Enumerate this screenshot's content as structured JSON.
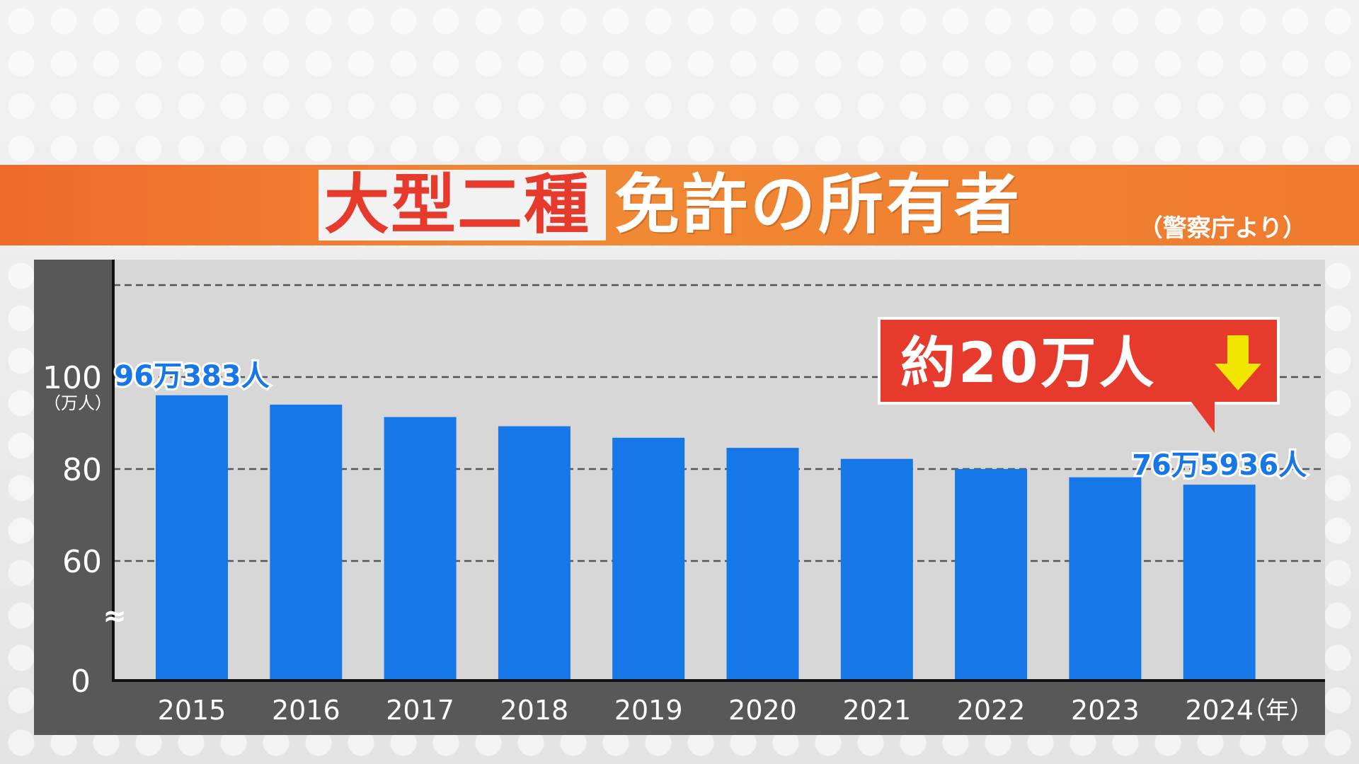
{
  "title": {
    "highlight": "大型二種",
    "rest": "免許の所有者",
    "source": "（警察庁より）"
  },
  "callout": {
    "text": "約20万人",
    "arrow_icon": "down-arrow-icon",
    "color": "#e53a2c",
    "arrow_color": "#f2e600"
  },
  "chart_data": {
    "type": "bar",
    "categories": [
      "2015",
      "2016",
      "2017",
      "2018",
      "2019",
      "2020",
      "2021",
      "2022",
      "2023",
      "2024"
    ],
    "series": [
      {
        "values": [
          96.0383,
          94.0,
          91.3,
          89.3,
          86.8,
          84.6,
          82.2,
          80.0,
          78.2,
          76.5936
        ]
      }
    ],
    "bar_color": "#1677e8",
    "xlabel": "（年）",
    "ylabel": "（万人）",
    "y_ticks": [
      "0",
      "60",
      "80",
      "100"
    ],
    "axis_break": "≈",
    "ylim": [
      0,
      120
    ],
    "broken_axis": true,
    "grid": "dashed horizontal at 60, 80, 100, 120",
    "data_labels": [
      {
        "category": "2015",
        "text": "96万383人"
      },
      {
        "category": "2024",
        "text": "76万5936人"
      }
    ]
  }
}
